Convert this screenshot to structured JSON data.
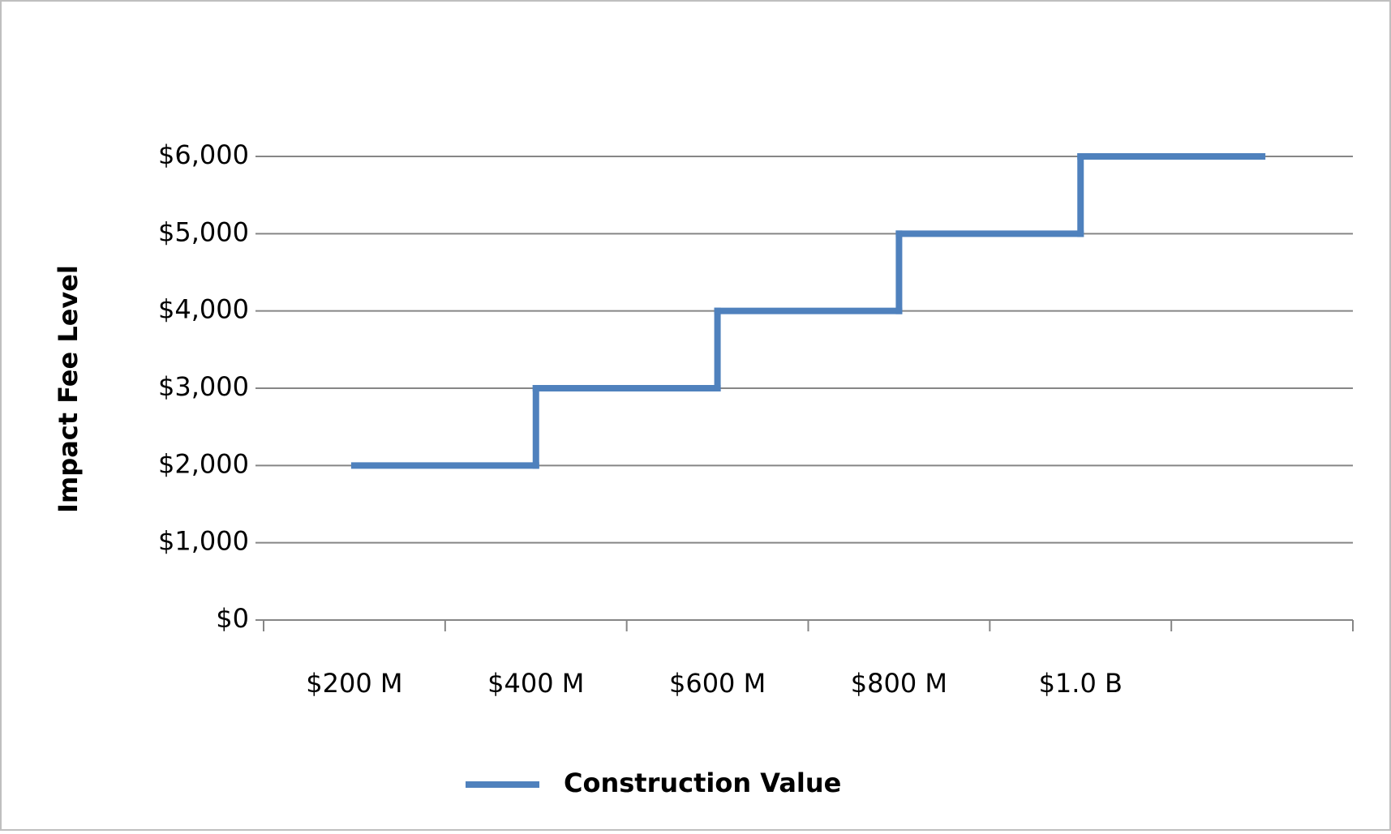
{
  "chart_data": {
    "type": "line",
    "step": "post",
    "y_axis_label": "Impact Fee Level",
    "categories": [
      "$200 M",
      "$400 M",
      "$600 M",
      "$800 M",
      "$1.0 B",
      null
    ],
    "series": [
      {
        "name": "Construction Value",
        "color": "#4f81bd",
        "values": [
          2000,
          3000,
          4000,
          5000,
          6000,
          6000
        ]
      }
    ],
    "ylim": [
      0,
      6000
    ],
    "yticks": [
      {
        "value": 0,
        "label": "$0"
      },
      {
        "value": 1000,
        "label": "$1,000"
      },
      {
        "value": 2000,
        "label": "$2,000"
      },
      {
        "value": 3000,
        "label": "$3,000"
      },
      {
        "value": 4000,
        "label": "$4,000"
      },
      {
        "value": 5000,
        "label": "$5,000"
      },
      {
        "value": 6000,
        "label": "$6,000"
      }
    ],
    "grid": true,
    "legend": "bottom"
  }
}
